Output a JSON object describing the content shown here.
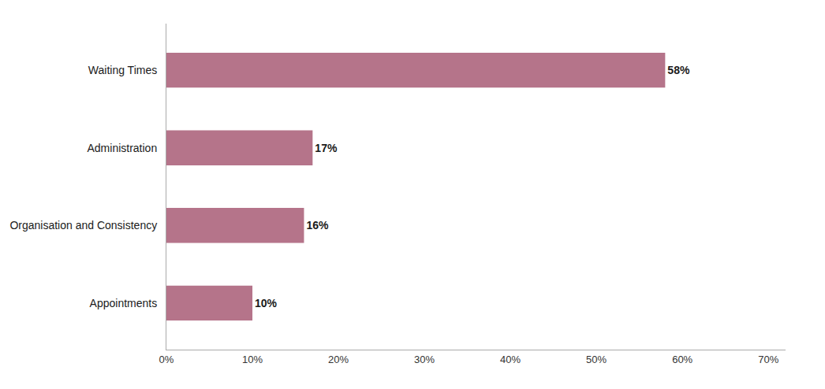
{
  "chart_data": {
    "type": "bar",
    "orientation": "horizontal",
    "categories": [
      "Appointments",
      "Organisation and Consistency",
      "Administration",
      "Waiting Times"
    ],
    "values": [
      0.1,
      0.16,
      0.17,
      0.58
    ],
    "value_labels": [
      "10%",
      "16%",
      "17%",
      "58%"
    ],
    "data_labels": true,
    "color": "#b5748a",
    "xlim": [
      0,
      0.72
    ],
    "xticks": [
      {
        "value": 0.0,
        "label": "0%"
      },
      {
        "value": 0.1,
        "label": "10%"
      },
      {
        "value": 0.2,
        "label": "20%"
      },
      {
        "value": 0.3,
        "label": "30%"
      },
      {
        "value": 0.4,
        "label": "40%"
      },
      {
        "value": 0.5,
        "label": "50%"
      },
      {
        "value": 0.6,
        "label": "60%"
      },
      {
        "value": 0.7,
        "label": "70%"
      }
    ],
    "grid": false
  }
}
